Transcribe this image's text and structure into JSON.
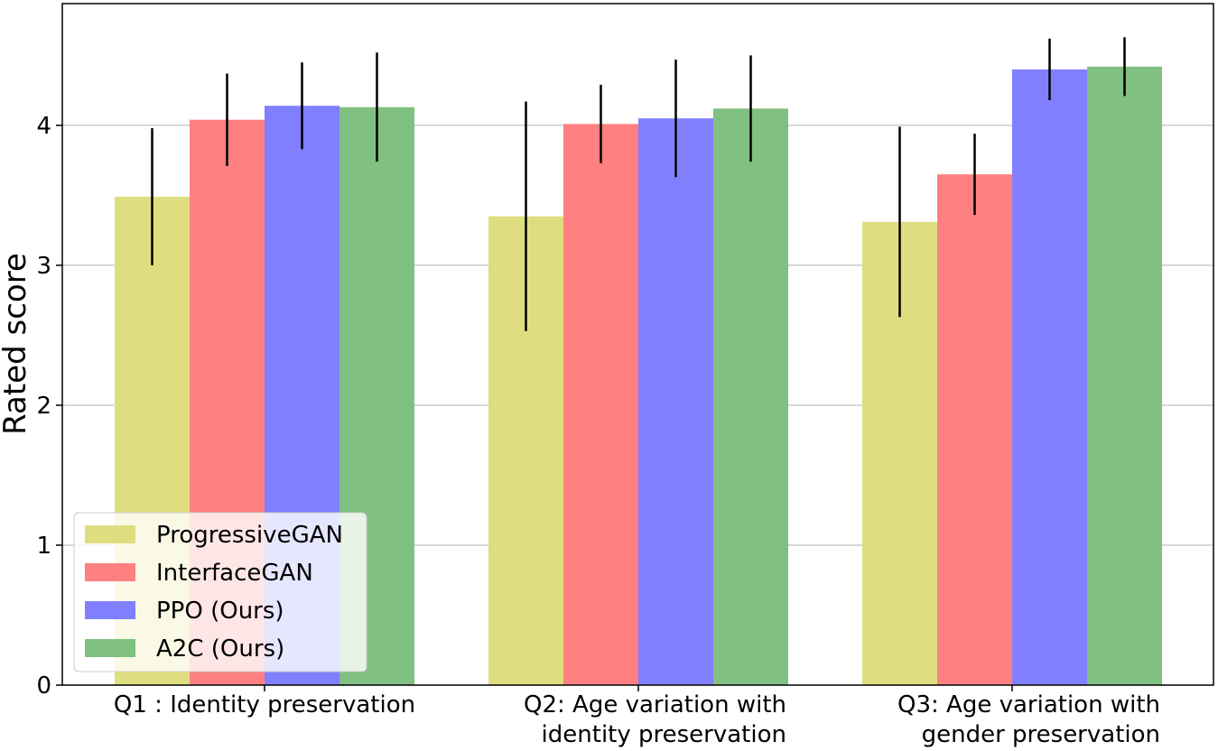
{
  "chart_data": {
    "type": "bar",
    "title": "",
    "xlabel": "",
    "ylabel": "Rated score",
    "ylim": [
      0,
      4.87
    ],
    "yticks": [
      0,
      1,
      2,
      3,
      4
    ],
    "grid": "y",
    "legend_position": "lower-left",
    "categories": [
      [
        "Q1 : Identity preservation"
      ],
      [
        "Q2: Age variation with",
        "identity preservation"
      ],
      [
        "Q3: Age variation with",
        "gender preservation"
      ]
    ],
    "series": [
      {
        "name": "ProgressiveGAN",
        "color": "#dede80",
        "values": [
          3.49,
          3.35,
          3.31
        ],
        "errors": [
          0.49,
          0.82,
          0.68
        ]
      },
      {
        "name": "InterfaceGAN",
        "color": "#ff8080",
        "values": [
          4.04,
          4.01,
          3.65
        ],
        "errors": [
          0.33,
          0.28,
          0.29
        ]
      },
      {
        "name": "PPO (Ours)",
        "color": "#8080ff",
        "values": [
          4.14,
          4.05,
          4.4
        ],
        "errors": [
          0.31,
          0.42,
          0.22
        ]
      },
      {
        "name": "A2C (Ours)",
        "color": "#80c080",
        "values": [
          4.13,
          4.12,
          4.42
        ],
        "errors": [
          0.39,
          0.38,
          0.21
        ]
      }
    ]
  }
}
